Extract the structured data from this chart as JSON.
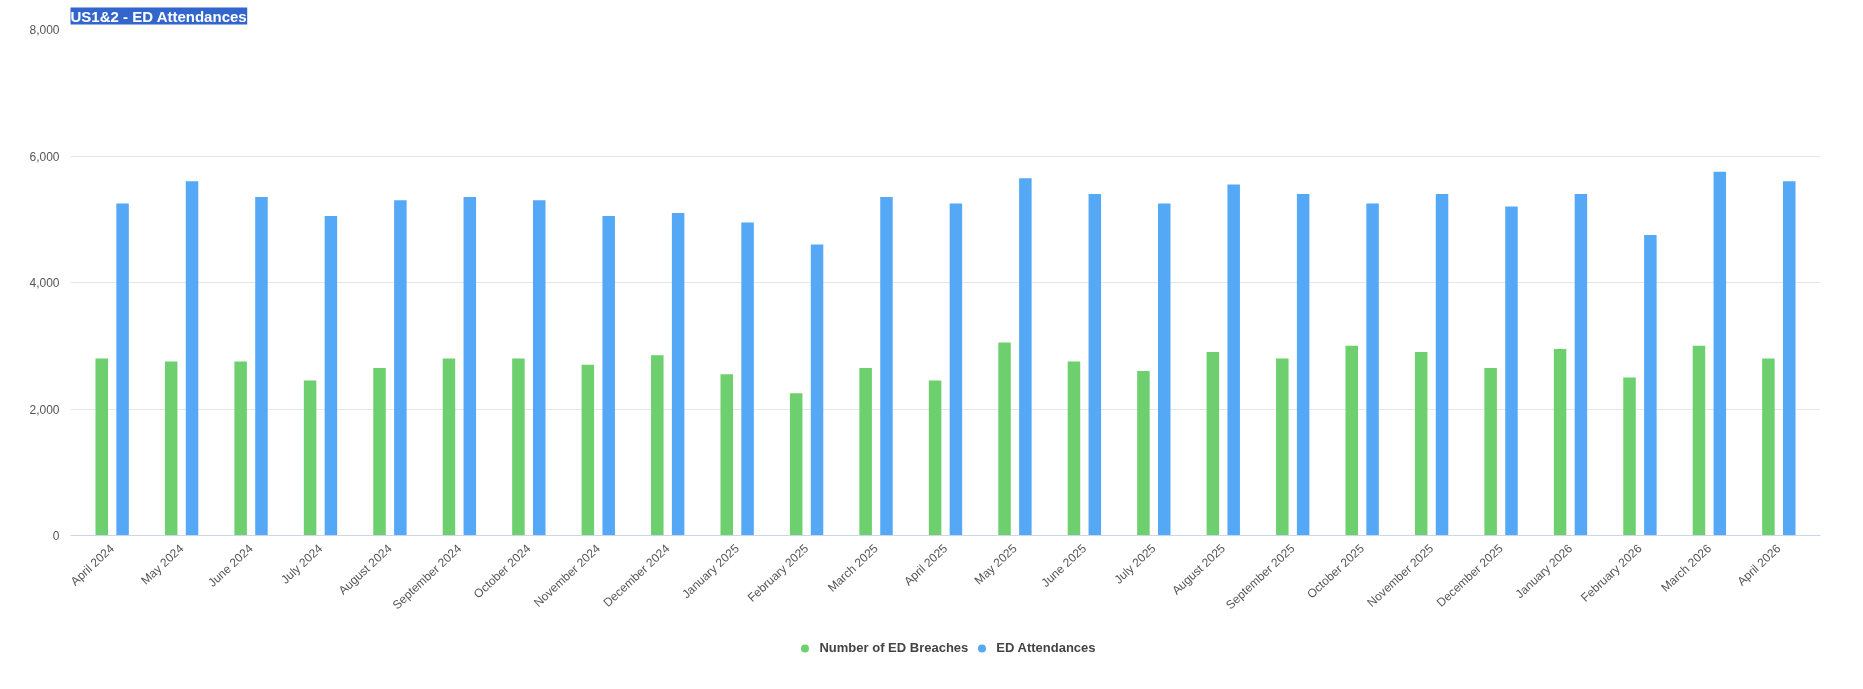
{
  "chart_data": {
    "type": "bar",
    "title": "US1&2 - ED Attendances",
    "categories": [
      "April 2024",
      "May 2024",
      "June 2024",
      "July 2024",
      "August 2024",
      "September 2024",
      "October 2024",
      "November 2024",
      "December 2024",
      "January 2025",
      "February 2025",
      "March 2025",
      "April 2025",
      "May 2025",
      "June 2025",
      "July 2025",
      "August 2025",
      "September 2025",
      "October 2025",
      "November 2025",
      "December 2025",
      "January 2026",
      "February 2026",
      "March 2026",
      "April 2026"
    ],
    "series": [
      {
        "name": "Number of ED Breaches",
        "color": "#6dcf6d",
        "values": [
          2800,
          2750,
          2750,
          2450,
          2650,
          2800,
          2800,
          2700,
          2850,
          2550,
          2250,
          2650,
          2450,
          3050,
          2750,
          2600,
          2900,
          2800,
          3000,
          2900,
          2650,
          2950,
          2500,
          3000,
          2800
        ]
      },
      {
        "name": "ED Attendances",
        "color": "#55a8f5",
        "values": [
          5250,
          5600,
          5350,
          5050,
          5300,
          5350,
          5300,
          5050,
          5100,
          4950,
          4600,
          5350,
          5250,
          5650,
          5400,
          5250,
          5550,
          5400,
          5250,
          5400,
          5200,
          5400,
          4750,
          5750,
          5600
        ]
      }
    ],
    "ylim": [
      0,
      8000
    ],
    "yticks": [
      {
        "value": 0,
        "label": "0"
      },
      {
        "value": 2000,
        "label": "2,000"
      },
      {
        "value": 4000,
        "label": "4,000"
      },
      {
        "value": 6000,
        "label": "6,000"
      },
      {
        "value": 8000,
        "label": "8,000"
      }
    ],
    "grid": "y",
    "legend": "bottom"
  }
}
